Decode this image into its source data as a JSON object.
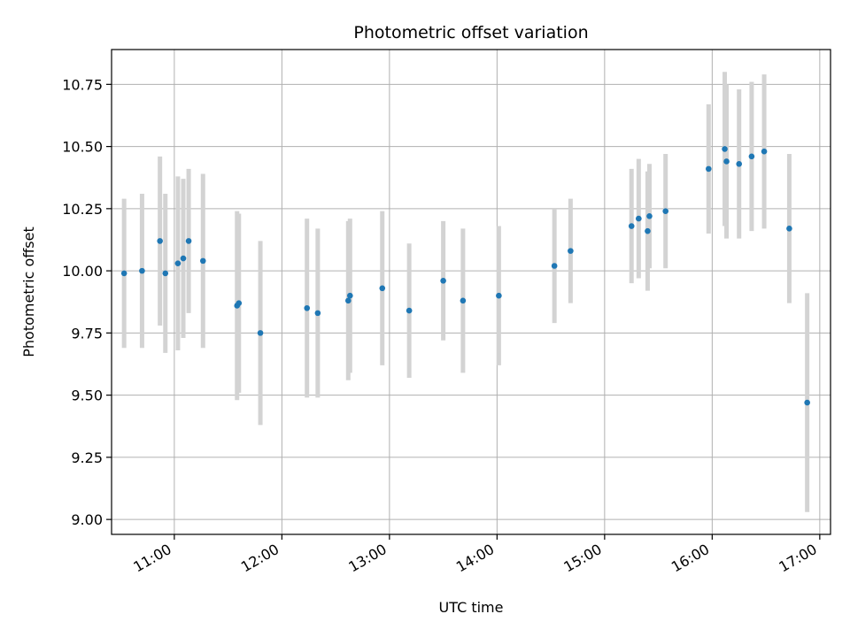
{
  "chart_data": {
    "type": "scatter",
    "title": "Photometric offset variation",
    "xlabel": "UTC time",
    "ylabel": "Photometric offset",
    "xlim": [
      "10:25",
      "17:06"
    ],
    "ylim": [
      8.94,
      10.89
    ],
    "grid": true,
    "x_ticks": [
      "11:00",
      "12:00",
      "13:00",
      "14:00",
      "15:00",
      "16:00",
      "17:00"
    ],
    "y_ticks": [
      "9.00",
      "9.25",
      "9.50",
      "9.75",
      "10.00",
      "10.25",
      "10.50",
      "10.75"
    ],
    "colors": {
      "point": "#1f77b4",
      "errorbar": "#d3d3d3",
      "grid": "#b0b0b0"
    },
    "series": [
      {
        "points": [
          {
            "x": "10:32",
            "y": 9.99,
            "err": 0.3
          },
          {
            "x": "10:42",
            "y": 10.0,
            "err": 0.31
          },
          {
            "x": "10:52",
            "y": 10.12,
            "err": 0.34
          },
          {
            "x": "10:55",
            "y": 9.99,
            "err": 0.32
          },
          {
            "x": "11:02",
            "y": 10.03,
            "err": 0.35
          },
          {
            "x": "11:05",
            "y": 10.05,
            "err": 0.32
          },
          {
            "x": "11:08",
            "y": 10.12,
            "err": 0.29
          },
          {
            "x": "11:16",
            "y": 10.04,
            "err": 0.35
          },
          {
            "x": "11:35",
            "y": 9.86,
            "err": 0.38
          },
          {
            "x": "11:36",
            "y": 9.87,
            "err": 0.36
          },
          {
            "x": "11:48",
            "y": 9.75,
            "err": 0.37
          },
          {
            "x": "12:14",
            "y": 9.85,
            "err": 0.36
          },
          {
            "x": "12:20",
            "y": 9.83,
            "err": 0.34
          },
          {
            "x": "12:37",
            "y": 9.88,
            "err": 0.32
          },
          {
            "x": "12:38",
            "y": 9.9,
            "err": 0.31
          },
          {
            "x": "12:56",
            "y": 9.93,
            "err": 0.31
          },
          {
            "x": "13:11",
            "y": 9.84,
            "err": 0.27
          },
          {
            "x": "13:30",
            "y": 9.96,
            "err": 0.24
          },
          {
            "x": "13:41",
            "y": 9.88,
            "err": 0.29
          },
          {
            "x": "14:01",
            "y": 9.9,
            "err": 0.28
          },
          {
            "x": "14:32",
            "y": 10.02,
            "err": 0.23
          },
          {
            "x": "14:41",
            "y": 10.08,
            "err": 0.21
          },
          {
            "x": "15:15",
            "y": 10.18,
            "err": 0.23
          },
          {
            "x": "15:19",
            "y": 10.21,
            "err": 0.24
          },
          {
            "x": "15:24",
            "y": 10.16,
            "err": 0.24
          },
          {
            "x": "15:25",
            "y": 10.22,
            "err": 0.21
          },
          {
            "x": "15:34",
            "y": 10.24,
            "err": 0.23
          },
          {
            "x": "15:58",
            "y": 10.41,
            "err": 0.26
          },
          {
            "x": "16:07",
            "y": 10.49,
            "err": 0.31
          },
          {
            "x": "16:08",
            "y": 10.44,
            "err": 0.31
          },
          {
            "x": "16:15",
            "y": 10.43,
            "err": 0.3
          },
          {
            "x": "16:22",
            "y": 10.46,
            "err": 0.3
          },
          {
            "x": "16:29",
            "y": 10.48,
            "err": 0.31
          },
          {
            "x": "16:43",
            "y": 10.17,
            "err": 0.3
          },
          {
            "x": "16:53",
            "y": 9.47,
            "err": 0.44
          }
        ]
      }
    ]
  }
}
